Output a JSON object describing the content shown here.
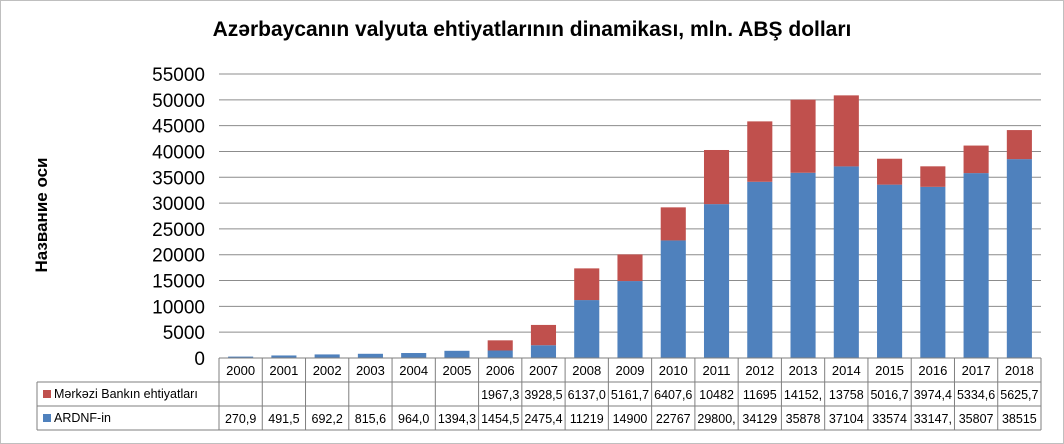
{
  "chart_data": {
    "type": "bar",
    "stacked": true,
    "title": "Azərbaycanın valyuta ehtiyatlarının dinamikası,  mln. ABŞ dolları",
    "ylabel": "Название оси",
    "xlabel": "",
    "ylim": [
      0,
      55000
    ],
    "yticks": [
      "0",
      "5000",
      "10000",
      "15000",
      "20000",
      "25000",
      "30000",
      "35000",
      "40000",
      "45000",
      "50000",
      "55000"
    ],
    "grid": "horizontal",
    "legend": "data-table",
    "categories": [
      "2000",
      "2001",
      "2002",
      "2003",
      "2004",
      "2005",
      "2006",
      "2007",
      "2008",
      "2009",
      "2010",
      "2011",
      "2012",
      "2013",
      "2014",
      "2015",
      "2016",
      "2017",
      "2018"
    ],
    "series": [
      {
        "name": "ARDNF-in",
        "color": "#4f81bd",
        "values": [
          270.9,
          491.5,
          692.2,
          815.6,
          964.0,
          1394.3,
          1454.5,
          2475.4,
          11219,
          14900,
          22767,
          29800,
          34129,
          35878,
          37104,
          33574,
          33147,
          35807,
          38515
        ],
        "labels": [
          "270,9",
          "491,5",
          "692,2",
          "815,6",
          "964,0",
          "1394,3",
          "1454,5",
          "2475,4",
          "11219",
          "14900",
          "22767",
          "29800,",
          "34129",
          "35878",
          "37104",
          "33574",
          "33147,",
          "35807",
          "38515"
        ]
      },
      {
        "name": "Mərkəzi Bankın ehtiyatları",
        "color": "#c0504d",
        "values": [
          null,
          null,
          null,
          null,
          null,
          null,
          1967.3,
          3928.5,
          6137.0,
          5161.7,
          6407.6,
          10482,
          11695,
          14152,
          13758,
          5016.7,
          3974.4,
          5334.6,
          5625.7
        ],
        "labels": [
          "",
          "",
          "",
          "",
          "",
          "",
          "1967,3",
          "3928,5",
          "6137,0",
          "5161,7",
          "6407,6",
          "10482",
          "11695",
          "14152,",
          "13758",
          "5016,7",
          "3974,4",
          "5334,6",
          "5625,7"
        ]
      }
    ]
  }
}
